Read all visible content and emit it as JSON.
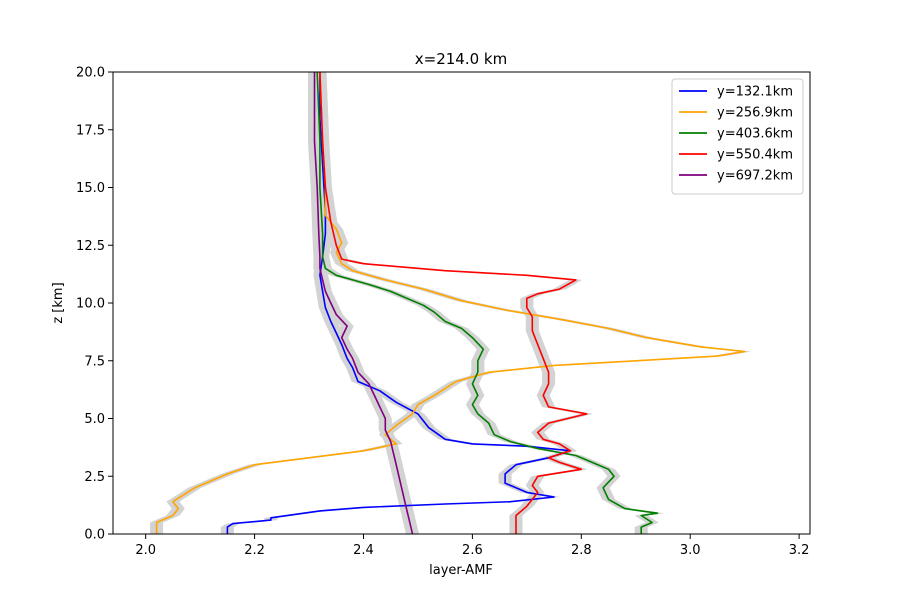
{
  "chart_data": {
    "type": "line",
    "title": "x=214.0 km",
    "xlabel": "layer-AMF",
    "ylabel": "z [km]",
    "xlim": [
      1.94,
      3.22
    ],
    "ylim": [
      0,
      20
    ],
    "xticks": [
      2.0,
      2.2,
      2.4,
      2.6,
      2.8,
      3.0,
      3.2
    ],
    "xtick_labels": [
      "2.0",
      "2.2",
      "2.4",
      "2.6",
      "2.8",
      "3.0",
      "3.2"
    ],
    "yticks": [
      0,
      2.5,
      5,
      7.5,
      10,
      12.5,
      15,
      17.5,
      20
    ],
    "ytick_labels": [
      "0.0",
      "2.5",
      "5.0",
      "7.5",
      "10.0",
      "12.5",
      "15.0",
      "17.5",
      "20.0"
    ],
    "grid": false,
    "legend_position": "top-right",
    "uncertainty_color": "#d3d3d3",
    "series": [
      {
        "name": "y=132.1km",
        "color": "#0000ff",
        "points": [
          [
            2.15,
            0.0
          ],
          [
            2.15,
            0.3
          ],
          [
            2.16,
            0.45
          ],
          [
            2.23,
            0.6
          ],
          [
            2.23,
            0.7
          ],
          [
            2.32,
            1.0
          ],
          [
            2.4,
            1.15
          ],
          [
            2.55,
            1.3
          ],
          [
            2.67,
            1.4
          ],
          [
            2.75,
            1.6
          ],
          [
            2.7,
            1.8
          ],
          [
            2.66,
            2.2
          ],
          [
            2.66,
            2.6
          ],
          [
            2.68,
            3.0
          ],
          [
            2.74,
            3.3
          ],
          [
            2.78,
            3.6
          ],
          [
            2.7,
            3.8
          ],
          [
            2.6,
            3.9
          ],
          [
            2.55,
            4.1
          ],
          [
            2.52,
            4.6
          ],
          [
            2.5,
            5.2
          ],
          [
            2.46,
            5.7
          ],
          [
            2.43,
            6.2
          ],
          [
            2.39,
            6.6
          ],
          [
            2.38,
            7.2
          ],
          [
            2.37,
            7.6
          ],
          [
            2.36,
            8.2
          ],
          [
            2.35,
            8.7
          ],
          [
            2.34,
            9.2
          ],
          [
            2.33,
            9.8
          ],
          [
            2.325,
            10.5
          ],
          [
            2.32,
            11.2
          ],
          [
            2.325,
            12.0
          ],
          [
            2.33,
            13.0
          ],
          [
            2.33,
            14.0
          ],
          [
            2.325,
            16.0
          ],
          [
            2.32,
            18.0
          ],
          [
            2.32,
            20.0
          ]
        ]
      },
      {
        "name": "y=256.9km",
        "color": "#ffa500",
        "points": [
          [
            2.02,
            0.0
          ],
          [
            2.02,
            0.5
          ],
          [
            2.05,
            0.8
          ],
          [
            2.06,
            1.1
          ],
          [
            2.05,
            1.4
          ],
          [
            2.07,
            1.7
          ],
          [
            2.09,
            2.0
          ],
          [
            2.12,
            2.3
          ],
          [
            2.15,
            2.6
          ],
          [
            2.2,
            3.0
          ],
          [
            2.3,
            3.3
          ],
          [
            2.4,
            3.6
          ],
          [
            2.46,
            3.9
          ],
          [
            2.44,
            4.3
          ],
          [
            2.46,
            4.7
          ],
          [
            2.49,
            5.2
          ],
          [
            2.5,
            5.6
          ],
          [
            2.53,
            6.0
          ],
          [
            2.57,
            6.6
          ],
          [
            2.63,
            7.0
          ],
          [
            2.75,
            7.3
          ],
          [
            2.9,
            7.5
          ],
          [
            3.05,
            7.7
          ],
          [
            3.1,
            7.9
          ],
          [
            3.02,
            8.1
          ],
          [
            2.92,
            8.5
          ],
          [
            2.85,
            8.9
          ],
          [
            2.76,
            9.3
          ],
          [
            2.66,
            9.7
          ],
          [
            2.58,
            10.1
          ],
          [
            2.51,
            10.6
          ],
          [
            2.44,
            11.0
          ],
          [
            2.38,
            11.4
          ],
          [
            2.36,
            11.7
          ],
          [
            2.35,
            12.2
          ],
          [
            2.36,
            12.6
          ],
          [
            2.35,
            13.2
          ],
          [
            2.33,
            13.8
          ],
          [
            2.33,
            15.0
          ],
          [
            2.325,
            17.0
          ],
          [
            2.32,
            20.0
          ]
        ]
      },
      {
        "name": "y=403.6km",
        "color": "#008000",
        "points": [
          [
            2.91,
            0.0
          ],
          [
            2.91,
            0.3
          ],
          [
            2.93,
            0.5
          ],
          [
            2.91,
            0.8
          ],
          [
            2.94,
            0.9
          ],
          [
            2.88,
            1.1
          ],
          [
            2.85,
            1.5
          ],
          [
            2.84,
            2.0
          ],
          [
            2.86,
            2.5
          ],
          [
            2.85,
            2.8
          ],
          [
            2.82,
            3.1
          ],
          [
            2.79,
            3.4
          ],
          [
            2.72,
            3.7
          ],
          [
            2.67,
            4.0
          ],
          [
            2.64,
            4.3
          ],
          [
            2.63,
            4.8
          ],
          [
            2.61,
            5.2
          ],
          [
            2.6,
            5.6
          ],
          [
            2.61,
            6.0
          ],
          [
            2.6,
            6.5
          ],
          [
            2.61,
            7.0
          ],
          [
            2.61,
            7.5
          ],
          [
            2.62,
            8.0
          ],
          [
            2.6,
            8.5
          ],
          [
            2.58,
            8.9
          ],
          [
            2.55,
            9.2
          ],
          [
            2.53,
            9.6
          ],
          [
            2.51,
            9.9
          ],
          [
            2.48,
            10.2
          ],
          [
            2.45,
            10.5
          ],
          [
            2.41,
            10.8
          ],
          [
            2.38,
            11.0
          ],
          [
            2.35,
            11.2
          ],
          [
            2.33,
            11.5
          ],
          [
            2.325,
            12.0
          ],
          [
            2.325,
            13.0
          ],
          [
            2.32,
            15.0
          ],
          [
            2.32,
            17.0
          ],
          [
            2.315,
            20.0
          ]
        ]
      },
      {
        "name": "y=550.4km",
        "color": "#ff0000",
        "points": [
          [
            2.68,
            0.0
          ],
          [
            2.68,
            0.4
          ],
          [
            2.68,
            0.8
          ],
          [
            2.7,
            1.2
          ],
          [
            2.71,
            1.5
          ],
          [
            2.72,
            1.8
          ],
          [
            2.71,
            2.1
          ],
          [
            2.72,
            2.5
          ],
          [
            2.8,
            2.8
          ],
          [
            2.76,
            3.1
          ],
          [
            2.74,
            3.3
          ],
          [
            2.78,
            3.6
          ],
          [
            2.76,
            3.9
          ],
          [
            2.73,
            4.1
          ],
          [
            2.72,
            4.4
          ],
          [
            2.74,
            4.8
          ],
          [
            2.81,
            5.2
          ],
          [
            2.74,
            5.5
          ],
          [
            2.73,
            6.0
          ],
          [
            2.74,
            6.5
          ],
          [
            2.74,
            7.0
          ],
          [
            2.73,
            7.6
          ],
          [
            2.72,
            8.2
          ],
          [
            2.71,
            8.8
          ],
          [
            2.71,
            9.4
          ],
          [
            2.7,
            9.8
          ],
          [
            2.7,
            10.2
          ],
          [
            2.72,
            10.4
          ],
          [
            2.76,
            10.6
          ],
          [
            2.79,
            11.0
          ],
          [
            2.7,
            11.2
          ],
          [
            2.55,
            11.4
          ],
          [
            2.4,
            11.7
          ],
          [
            2.36,
            11.9
          ],
          [
            2.35,
            12.5
          ],
          [
            2.34,
            13.5
          ],
          [
            2.33,
            15.0
          ],
          [
            2.325,
            17.0
          ],
          [
            2.32,
            20.0
          ]
        ]
      },
      {
        "name": "y=697.2km",
        "color": "#800080",
        "points": [
          [
            2.49,
            0.0
          ],
          [
            2.485,
            0.5
          ],
          [
            2.48,
            1.0
          ],
          [
            2.475,
            1.5
          ],
          [
            2.47,
            2.0
          ],
          [
            2.465,
            2.5
          ],
          [
            2.46,
            3.0
          ],
          [
            2.455,
            3.5
          ],
          [
            2.45,
            4.0
          ],
          [
            2.44,
            4.5
          ],
          [
            2.44,
            5.0
          ],
          [
            2.43,
            5.5
          ],
          [
            2.42,
            6.0
          ],
          [
            2.41,
            6.5
          ],
          [
            2.39,
            7.0
          ],
          [
            2.38,
            7.6
          ],
          [
            2.37,
            8.0
          ],
          [
            2.36,
            8.5
          ],
          [
            2.37,
            9.0
          ],
          [
            2.35,
            9.5
          ],
          [
            2.34,
            10.0
          ],
          [
            2.33,
            10.5
          ],
          [
            2.325,
            11.0
          ],
          [
            2.32,
            11.5
          ],
          [
            2.32,
            12.0
          ],
          [
            2.318,
            13.0
          ],
          [
            2.315,
            15.0
          ],
          [
            2.31,
            17.0
          ],
          [
            2.31,
            20.0
          ]
        ]
      }
    ]
  }
}
